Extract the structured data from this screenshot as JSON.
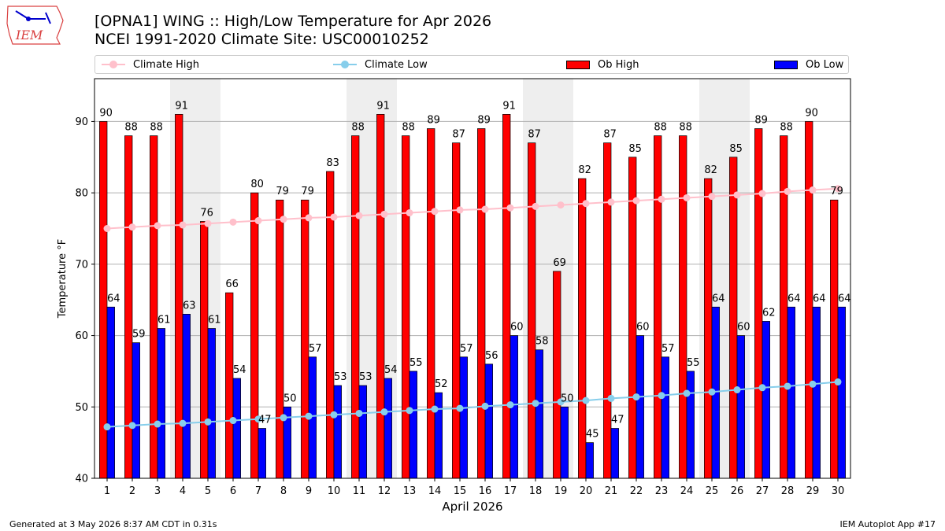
{
  "header": {
    "title_line1": "[OPNA1] WING :: High/Low Temperature for Apr 2026",
    "title_line2": "NCEI 1991-2020 Climate Site: USC00010252",
    "logo_text": "IEM"
  },
  "legend": {
    "climate_high": "Climate High",
    "climate_low": "Climate Low",
    "ob_high": "Ob High",
    "ob_low": "Ob Low"
  },
  "footer": {
    "generated": "Generated at 3 May 2026 8:37 AM CDT in 0.31s",
    "app": "IEM Autoplot App #17"
  },
  "colors": {
    "ob_high": "#ff0000",
    "ob_low": "#0000ff",
    "climate_high": "#ffc0cb",
    "climate_low": "#87ceeb",
    "weekend_shade": "#eeeeee",
    "grid": "#b0b0b0"
  },
  "chart_data": {
    "type": "bar",
    "xlabel": "April 2026",
    "ylabel": "Temperature °F",
    "ylim": [
      40,
      96
    ],
    "yticks": [
      40,
      50,
      60,
      70,
      80,
      90
    ],
    "grid": true,
    "legend_position": "top",
    "categories": [
      "1",
      "2",
      "3",
      "4",
      "5",
      "6",
      "7",
      "8",
      "9",
      "10",
      "11",
      "12",
      "13",
      "14",
      "15",
      "16",
      "17",
      "18",
      "19",
      "20",
      "21",
      "22",
      "23",
      "24",
      "25",
      "26",
      "27",
      "28",
      "29",
      "30"
    ],
    "shaded_days": [
      4,
      5,
      11,
      12,
      18,
      19,
      25,
      26
    ],
    "series": [
      {
        "name": "Ob High",
        "kind": "bar",
        "values": [
          90,
          88,
          88,
          91,
          76,
          66,
          80,
          79,
          79,
          83,
          88,
          91,
          88,
          89,
          87,
          89,
          91,
          87,
          69,
          82,
          87,
          85,
          88,
          88,
          82,
          85,
          89,
          88,
          90,
          79
        ]
      },
      {
        "name": "Ob Low",
        "kind": "bar",
        "values": [
          64,
          59,
          61,
          63,
          61,
          54,
          47,
          50,
          57,
          53,
          53,
          54,
          55,
          52,
          57,
          56,
          60,
          58,
          50,
          45,
          47,
          60,
          57,
          55,
          64,
          60,
          62,
          64,
          64,
          64
        ]
      },
      {
        "name": "Climate High",
        "kind": "line",
        "values": [
          75.0,
          75.2,
          75.4,
          75.5,
          75.7,
          75.9,
          76.1,
          76.3,
          76.5,
          76.6,
          76.8,
          77.0,
          77.2,
          77.4,
          77.6,
          77.7,
          77.9,
          78.1,
          78.3,
          78.5,
          78.7,
          78.9,
          79.1,
          79.3,
          79.5,
          79.7,
          79.9,
          80.2,
          80.4,
          80.6
        ]
      },
      {
        "name": "Climate Low",
        "kind": "line",
        "values": [
          47.2,
          47.4,
          47.6,
          47.7,
          47.9,
          48.1,
          48.3,
          48.5,
          48.7,
          48.9,
          49.1,
          49.3,
          49.5,
          49.7,
          49.8,
          50.1,
          50.3,
          50.5,
          50.7,
          50.9,
          51.2,
          51.4,
          51.6,
          51.9,
          52.1,
          52.4,
          52.7,
          52.9,
          53.2,
          53.5
        ]
      }
    ]
  }
}
